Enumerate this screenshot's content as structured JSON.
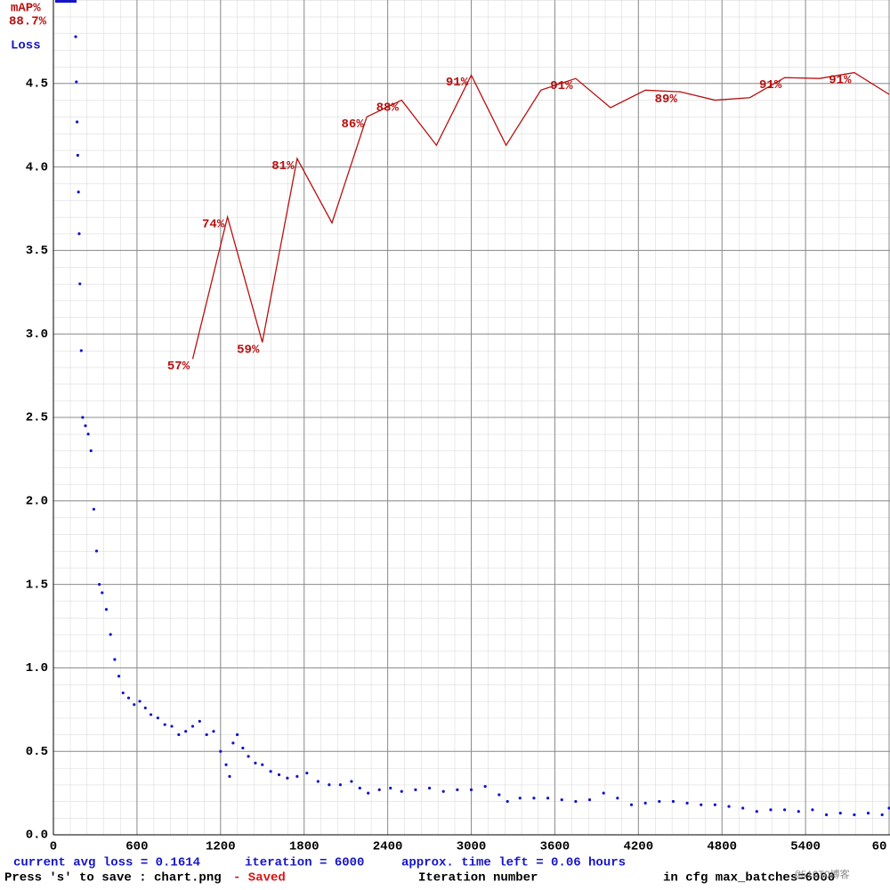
{
  "chart_data": {
    "type": "line",
    "map_title": "mAP%",
    "current_map": "88.7%",
    "y_label": "Loss",
    "x_label": "Iteration number",
    "xlim": [
      0,
      6000
    ],
    "xticks": [
      0,
      600,
      1200,
      1800,
      2400,
      3000,
      3600,
      4200,
      4800,
      5400,
      {
        "value": 6000,
        "label": "60"
      }
    ],
    "ylim": [
      0,
      5
    ],
    "yticks": [
      {
        "value": 0,
        "label": "0.0"
      },
      0.5,
      {
        "value": 1,
        "label": "1.0"
      },
      1.5,
      {
        "value": 2,
        "label": "2.0"
      },
      2.5,
      {
        "value": 3,
        "label": "3.0"
      },
      3.5,
      {
        "value": 4,
        "label": "4.0"
      },
      4.5
    ],
    "y2lim": [
      0,
      100
    ],
    "grid": true,
    "series": [
      {
        "name": "Loss",
        "color": "#1515c8",
        "style": "dots",
        "x": [
          160,
          165,
          170,
          175,
          180,
          185,
          190,
          200,
          210,
          230,
          250,
          270,
          290,
          310,
          330,
          350,
          380,
          410,
          440,
          470,
          500,
          540,
          580,
          620,
          660,
          700,
          750,
          800,
          850,
          900,
          950,
          1000,
          1050,
          1100,
          1150,
          1200,
          1240,
          1265,
          1290,
          1320,
          1360,
          1400,
          1450,
          1500,
          1560,
          1620,
          1680,
          1750,
          1820,
          1900,
          1980,
          2060,
          2140,
          2200,
          2260,
          2340,
          2420,
          2500,
          2600,
          2700,
          2800,
          2900,
          3000,
          3100,
          3200,
          3260,
          3350,
          3450,
          3550,
          3650,
          3750,
          3850,
          3950,
          4050,
          4150,
          4250,
          4350,
          4450,
          4550,
          4650,
          4750,
          4850,
          4950,
          5050,
          5150,
          5250,
          5350,
          5450,
          5550,
          5650,
          5750,
          5850,
          5950,
          6000
        ],
        "values": [
          4.78,
          4.51,
          4.27,
          4.07,
          3.85,
          3.6,
          3.3,
          2.9,
          2.5,
          2.45,
          2.4,
          2.3,
          1.95,
          1.7,
          1.5,
          1.45,
          1.35,
          1.2,
          1.05,
          0.95,
          0.85,
          0.82,
          0.78,
          0.8,
          0.76,
          0.72,
          0.7,
          0.66,
          0.65,
          0.6,
          0.62,
          0.65,
          0.68,
          0.6,
          0.62,
          0.5,
          0.42,
          0.35,
          0.55,
          0.6,
          0.52,
          0.47,
          0.43,
          0.42,
          0.38,
          0.36,
          0.34,
          0.35,
          0.37,
          0.32,
          0.3,
          0.3,
          0.32,
          0.28,
          0.25,
          0.27,
          0.28,
          0.26,
          0.27,
          0.28,
          0.26,
          0.27,
          0.27,
          0.29,
          0.24,
          0.2,
          0.22,
          0.22,
          0.22,
          0.21,
          0.2,
          0.21,
          0.25,
          0.22,
          0.18,
          0.19,
          0.2,
          0.2,
          0.19,
          0.18,
          0.18,
          0.17,
          0.16,
          0.14,
          0.15,
          0.15,
          0.14,
          0.15,
          0.12,
          0.13,
          0.12,
          0.13,
          0.12,
          0.16
        ]
      },
      {
        "name": "mAP%",
        "color": "#b81010",
        "style": "line",
        "axis": "y2",
        "x": [
          1000,
          1250,
          1500,
          1750,
          2000,
          2250,
          2500,
          2750,
          3000,
          3250,
          3500,
          3750,
          4000,
          4250,
          4500,
          4750,
          5000,
          5250,
          5500,
          5750,
          6000
        ],
        "values": [
          57,
          74,
          59,
          81,
          73.3,
          86,
          88,
          82.6,
          91,
          82.6,
          89.2,
          90.6,
          87.1,
          89.2,
          89,
          88,
          88.3,
          90.7,
          90.6,
          91.3,
          88.7
        ],
        "value_labels": [
          "57%",
          "74%",
          "59%",
          "81%",
          null,
          "86%",
          "88%",
          null,
          "91%",
          null,
          null,
          "91%",
          null,
          null,
          "89%",
          null,
          null,
          "91%",
          null,
          "91%",
          null
        ]
      }
    ]
  },
  "status": {
    "avg_loss": "current avg loss = 0.1614",
    "iteration": "iteration = 6000",
    "time_left": "approx. time left = 0.06 hours",
    "save_hint": "Press 's' to save : chart.png",
    "saved": "- Saved",
    "max_batches": "in cfg max_batches=6000",
    "watermark": "@51CTO博客"
  }
}
